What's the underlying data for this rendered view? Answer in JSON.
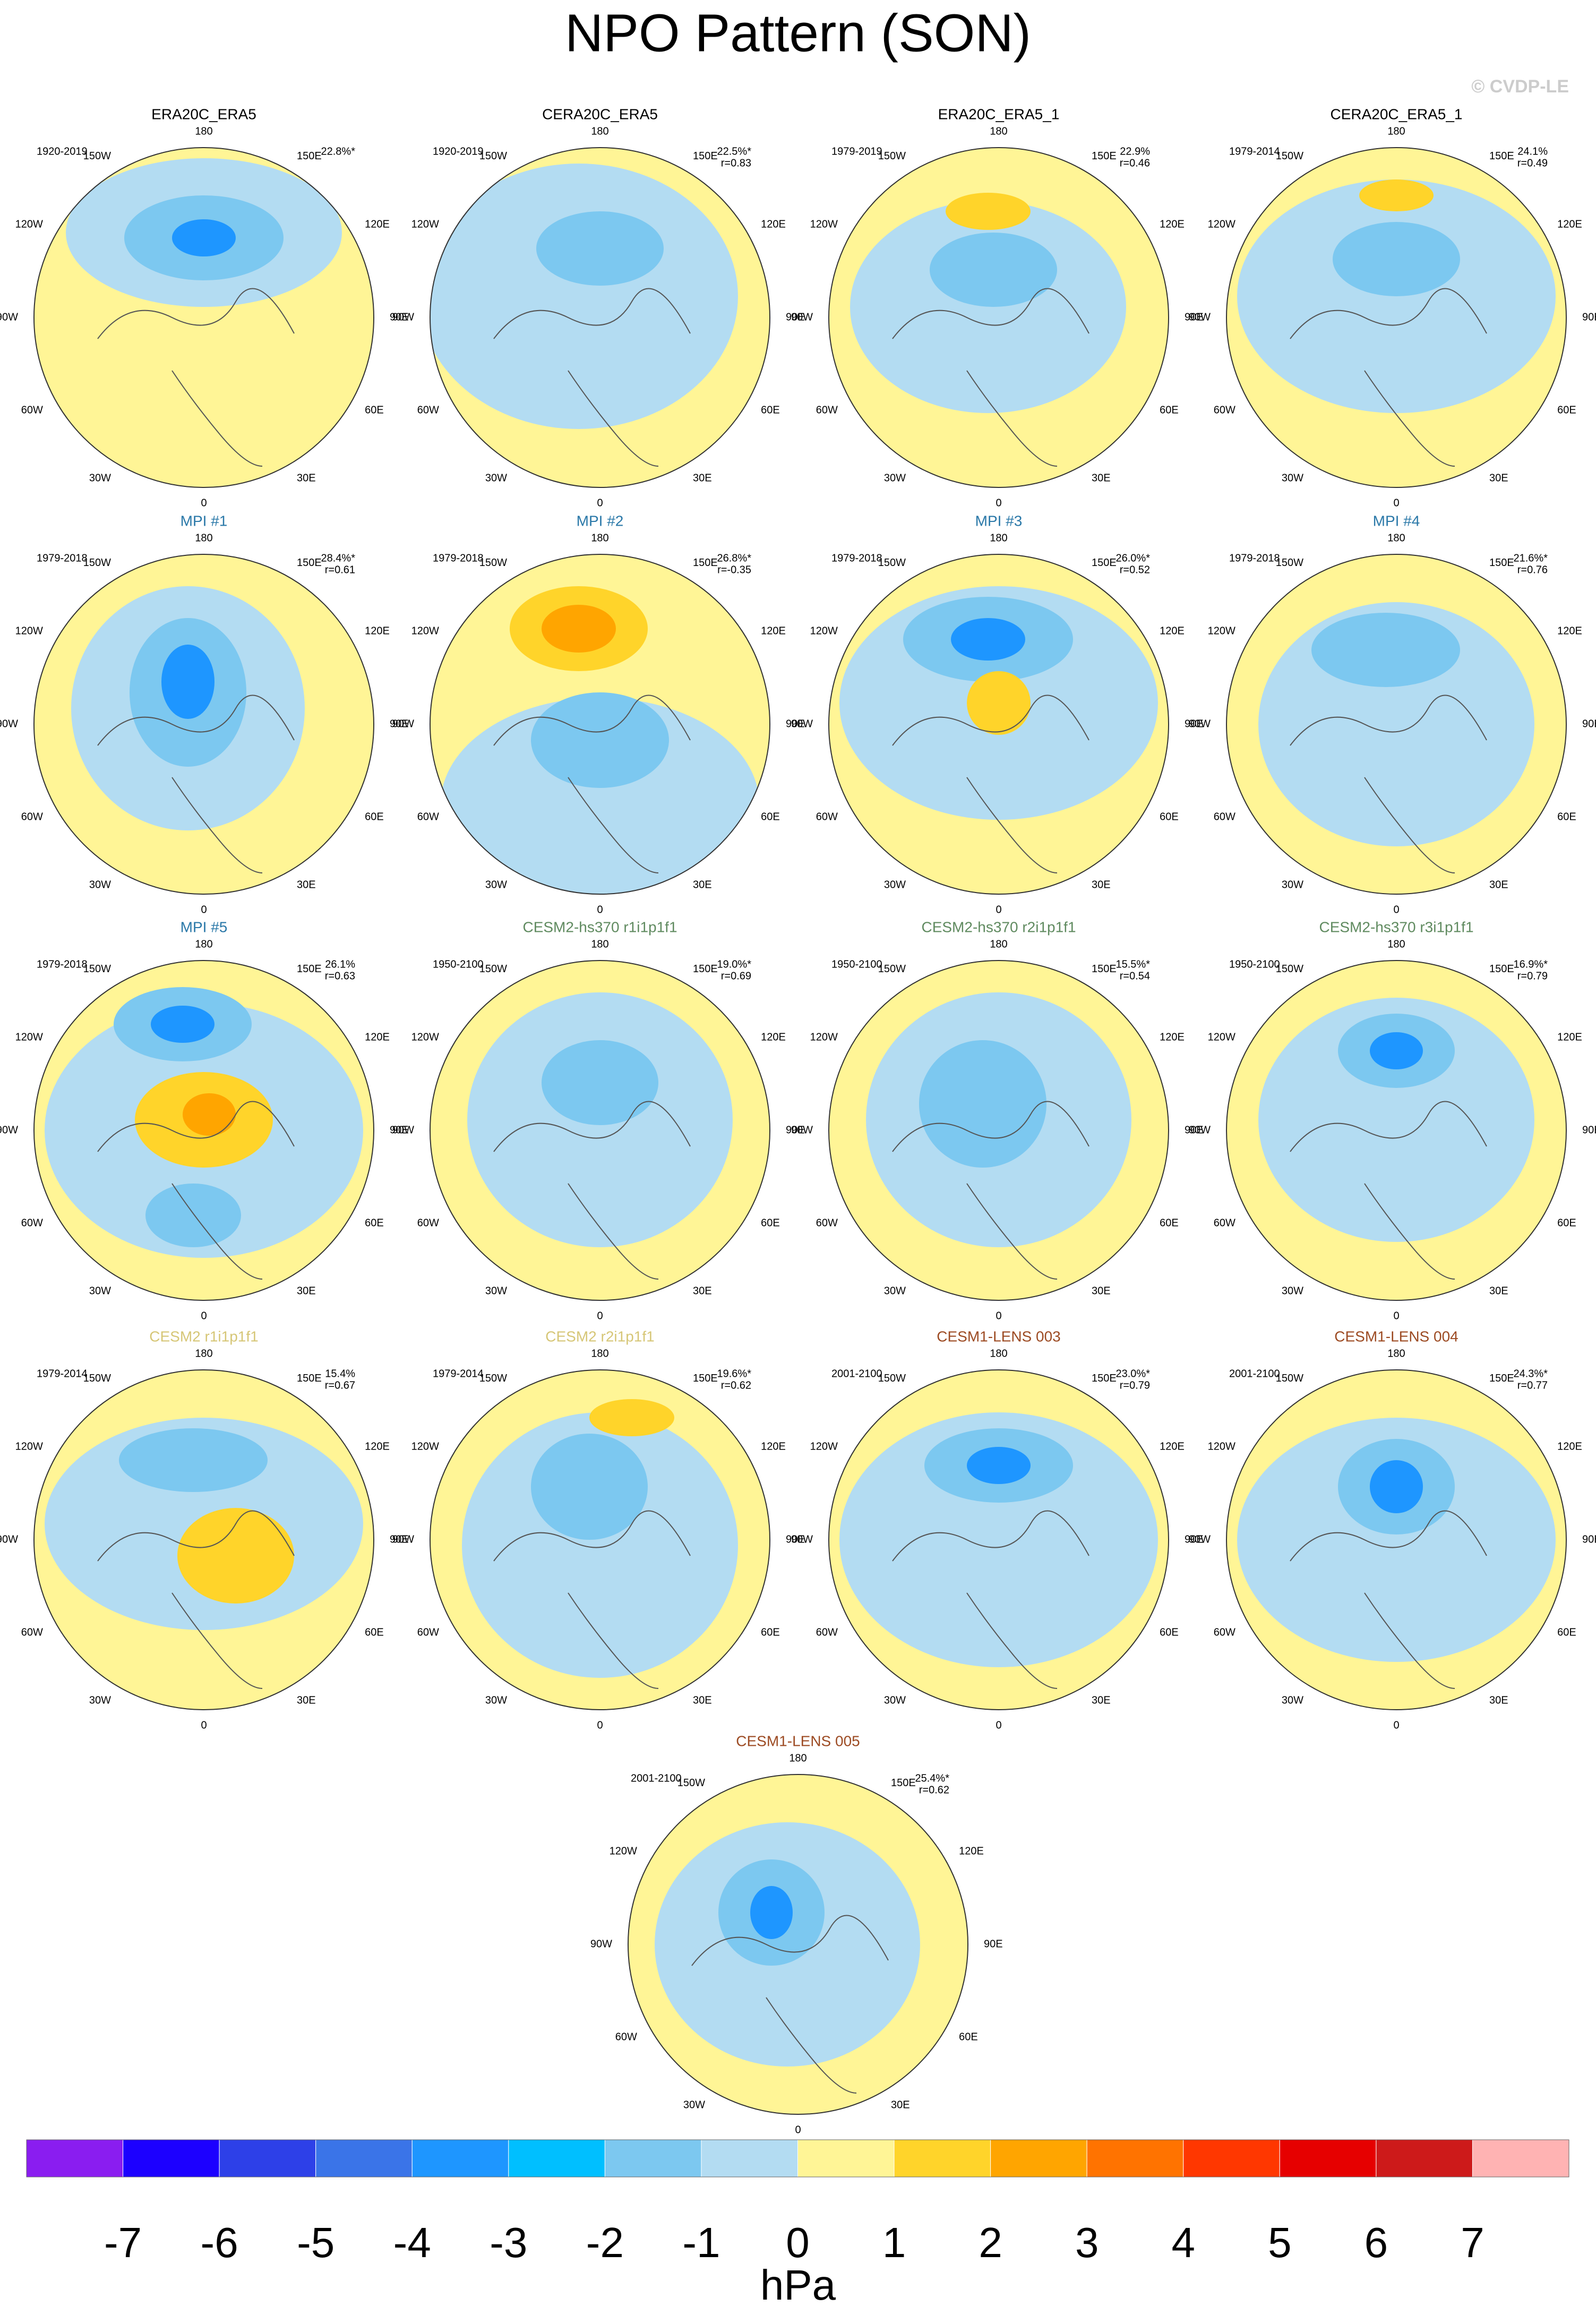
{
  "header": {
    "title": "NPO Pattern (SON)",
    "credit": "© CVDP-LE"
  },
  "lon_labels": [
    "180",
    "150E",
    "120E",
    "90E",
    "60E",
    "30E",
    "0",
    "30W",
    "60W",
    "90W",
    "120W",
    "150W"
  ],
  "panels": [
    {
      "title": "ERA20C_ERA5",
      "title_color": "#000000",
      "period": "1920-2019",
      "variance": "22.8%*"
    },
    {
      "title": "CERA20C_ERA5",
      "title_color": "#000000",
      "period": "1920-2019",
      "variance": "22.5%*",
      "r": "r=0.83"
    },
    {
      "title": "ERA20C_ERA5_1",
      "title_color": "#000000",
      "period": "1979-2019",
      "variance": "22.9%",
      "r": "r=0.46"
    },
    {
      "title": "CERA20C_ERA5_1",
      "title_color": "#000000",
      "period": "1979-2014",
      "variance": "24.1%",
      "r": "r=0.49"
    },
    {
      "title": "MPI #1",
      "title_color": "#2a78a8",
      "period": "1979-2018",
      "variance": "28.4%*",
      "r": "r=0.61"
    },
    {
      "title": "MPI #2",
      "title_color": "#2a78a8",
      "period": "1979-2018",
      "variance": "26.8%*",
      "r": "r=-0.35"
    },
    {
      "title": "MPI #3",
      "title_color": "#2a78a8",
      "period": "1979-2018",
      "variance": "26.0%*",
      "r": "r=0.52"
    },
    {
      "title": "MPI #4",
      "title_color": "#2a78a8",
      "period": "1979-2018",
      "variance": "21.6%*",
      "r": "r=0.76"
    },
    {
      "title": "MPI #5",
      "title_color": "#2a78a8",
      "period": "1979-2018",
      "variance": "26.1%",
      "r": "r=0.63"
    },
    {
      "title": "CESM2-hs370 r1i1p1f1",
      "title_color": "#5f8a5f",
      "period": "1950-2100",
      "variance": "19.0%*",
      "r": "r=0.69"
    },
    {
      "title": "CESM2-hs370 r2i1p1f1",
      "title_color": "#5f8a5f",
      "period": "1950-2100",
      "variance": "15.5%*",
      "r": "r=0.54"
    },
    {
      "title": "CESM2-hs370 r3i1p1f1",
      "title_color": "#5f8a5f",
      "period": "1950-2100",
      "variance": "16.9%*",
      "r": "r=0.79"
    },
    {
      "title": "CESM2 r1i1p1f1",
      "title_color": "#d6c676",
      "period": "1979-2014",
      "variance": "15.4%",
      "r": "r=0.67"
    },
    {
      "title": "CESM2 r2i1p1f1",
      "title_color": "#d6c676",
      "period": "1979-2014",
      "variance": "19.6%*",
      "r": "r=0.62"
    },
    {
      "title": "CESM1-LENS 003",
      "title_color": "#9c4a22",
      "period": "2001-2100",
      "variance": "23.0%*",
      "r": "r=0.79"
    },
    {
      "title": "CESM1-LENS 004",
      "title_color": "#9c4a22",
      "period": "2001-2100",
      "variance": "24.3%*",
      "r": "r=0.77"
    },
    {
      "title": "CESM1-LENS 005",
      "title_color": "#9c4a22",
      "period": "2001-2100",
      "variance": "25.4%*",
      "r": "r=0.62"
    }
  ],
  "colorbar": {
    "colors": [
      "#8a1df0",
      "#1c00ff",
      "#2d40e8",
      "#3a74e8",
      "#1e96ff",
      "#00bfff",
      "#7cc8f0",
      "#b3dcf2",
      "#fff596",
      "#ffd42a",
      "#ffa500",
      "#ff7300",
      "#ff3700",
      "#e60000",
      "#cd1a1a",
      "#ffb3b3"
    ],
    "labels": [
      -7,
      -6,
      -5,
      -4,
      -3,
      -2,
      -1,
      0,
      1,
      2,
      3,
      4,
      5,
      6,
      7
    ],
    "unit": "hPa"
  }
}
